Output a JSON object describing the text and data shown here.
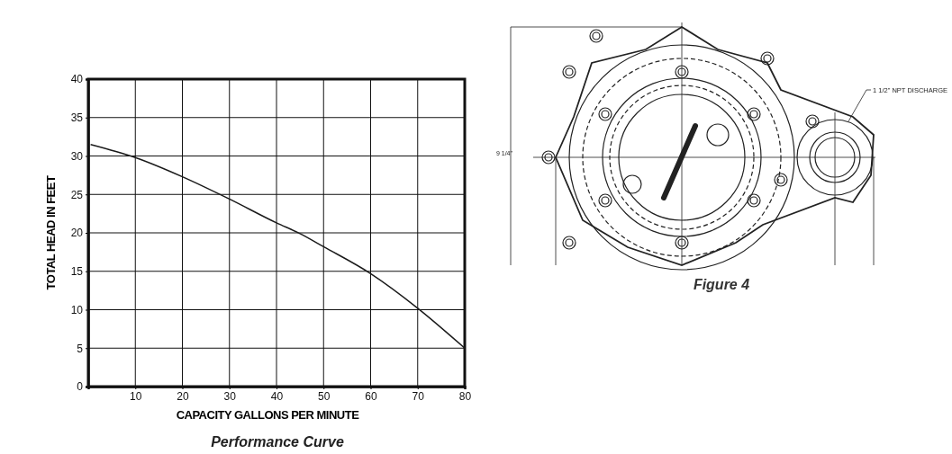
{
  "chart_data": {
    "type": "line",
    "title": "Performance Curve",
    "xlabel": "CAPACITY GALLONS PER MINUTE",
    "ylabel": "TOTAL HEAD IN FEET",
    "x": [
      0.5,
      10,
      20,
      30,
      40,
      45,
      50,
      60,
      70,
      80
    ],
    "series": [
      {
        "color": "#1a1a1a",
        "values": [
          31.5,
          29.8,
          27.3,
          24.4,
          21.3,
          19.9,
          18.2,
          14.7,
          10.2,
          5
        ]
      }
    ],
    "xlim": [
      0,
      80
    ],
    "xticks": [
      10,
      20,
      30,
      40,
      50,
      60,
      70,
      80
    ],
    "ylim": [
      0,
      40
    ],
    "yticks": [
      0,
      5,
      10,
      15,
      20,
      25,
      30,
      35,
      40
    ],
    "grid": true,
    "marker": "none",
    "line_style": "solid",
    "annotations": [
      "Figure 4",
      "1 1/2\" NPT DISCHARGE",
      "9 1/4\""
    ]
  }
}
